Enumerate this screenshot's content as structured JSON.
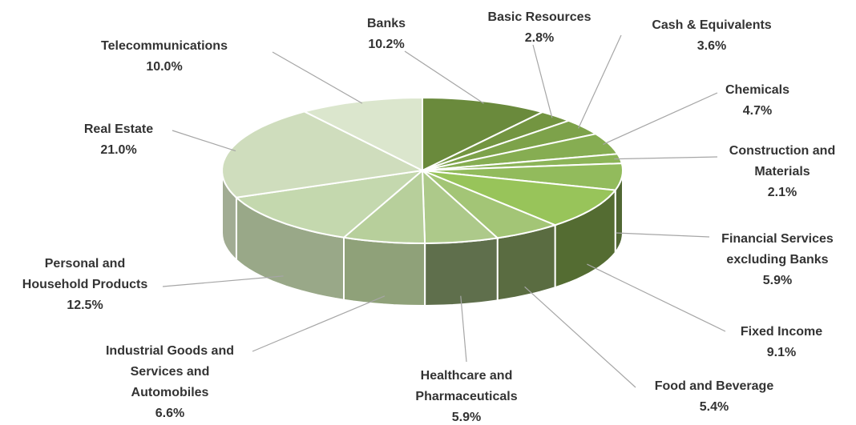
{
  "chart_data": {
    "type": "pie",
    "title": "",
    "slices": [
      {
        "label": "Banks",
        "value": 10.2,
        "value_label": "10.2%",
        "color": "#6a8a3c"
      },
      {
        "label": "Basic Resources",
        "value": 2.8,
        "value_label": "2.8%",
        "color": "#739541"
      },
      {
        "label": "Cash &  Equivalents",
        "value": 3.6,
        "value_label": "3.6%",
        "color": "#7da24a"
      },
      {
        "label": "Chemicals",
        "value": 4.7,
        "value_label": "4.7%",
        "color": "#86ad52"
      },
      {
        "label": "Construction and Materials",
        "label_lines": [
          "Construction and",
          "Materials"
        ],
        "value": 2.1,
        "value_label": "2.1%",
        "color": "#8cb458"
      },
      {
        "label": "Financial Services excluding Banks",
        "label_lines": [
          "Financial Services",
          "excluding Banks"
        ],
        "value": 5.9,
        "value_label": "5.9%",
        "color": "#92bb5c"
      },
      {
        "label": "Fixed Income",
        "value": 9.1,
        "value_label": "9.1%",
        "color": "#98c45a"
      },
      {
        "label": "Food and Beverage",
        "value": 5.4,
        "value_label": "5.4%",
        "color": "#a3c576"
      },
      {
        "label": "Healthcare and Pharmaceuticals",
        "label_lines": [
          "Healthcare and",
          "Pharmaceuticals"
        ],
        "value": 5.9,
        "value_label": "5.9%",
        "color": "#adc98a"
      },
      {
        "label": "Industrial Goods and Services and Automobiles",
        "label_lines": [
          "Industrial Goods and",
          "Services and",
          "Automobiles"
        ],
        "value": 6.6,
        "value_label": "6.6%",
        "color": "#b7cf9b"
      },
      {
        "label": "Personal and Household Products",
        "label_lines": [
          "Personal and",
          "Household Products"
        ],
        "value": 12.5,
        "value_label": "12.5%",
        "color": "#c4d8ae"
      },
      {
        "label": "Real Estate",
        "value": 21.0,
        "value_label": "21.0%",
        "color": "#cfddbd"
      },
      {
        "label": "Telecommunications",
        "value": 10.0,
        "value_label": "10.0%",
        "color": "#dbe6cd"
      }
    ],
    "legend": "none",
    "style": "3d-pie"
  }
}
